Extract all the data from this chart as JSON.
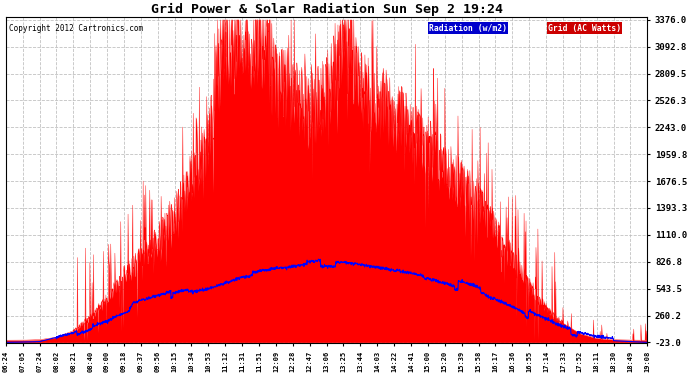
{
  "title": "Grid Power & Solar Radiation Sun Sep 2 19:24",
  "copyright": "Copyright 2012 Cartronics.com",
  "background_color": "#ffffff",
  "plot_bg_color": "#ffffff",
  "grid_color": "#bbbbbb",
  "ymin": -23.0,
  "ymax": 3376.0,
  "yticks": [
    3376.0,
    3092.8,
    2809.5,
    2526.3,
    2243.0,
    1959.8,
    1676.5,
    1393.3,
    1110.0,
    826.8,
    543.5,
    260.2,
    -23.0
  ],
  "radiation_color": "#ff0000",
  "grid_line_color": "#0000ff",
  "legend_radiation_bg": "#0000cc",
  "legend_grid_bg": "#cc0000",
  "x_labels": [
    "06:24",
    "07:05",
    "07:24",
    "08:02",
    "08:21",
    "08:40",
    "09:00",
    "09:18",
    "09:37",
    "09:56",
    "10:15",
    "10:34",
    "10:53",
    "11:12",
    "11:31",
    "11:51",
    "12:09",
    "12:28",
    "12:47",
    "13:06",
    "13:25",
    "13:44",
    "14:03",
    "14:22",
    "14:41",
    "15:00",
    "15:20",
    "15:39",
    "15:58",
    "16:17",
    "16:36",
    "16:55",
    "17:14",
    "17:33",
    "17:52",
    "18:11",
    "18:30",
    "18:49",
    "19:08"
  ]
}
